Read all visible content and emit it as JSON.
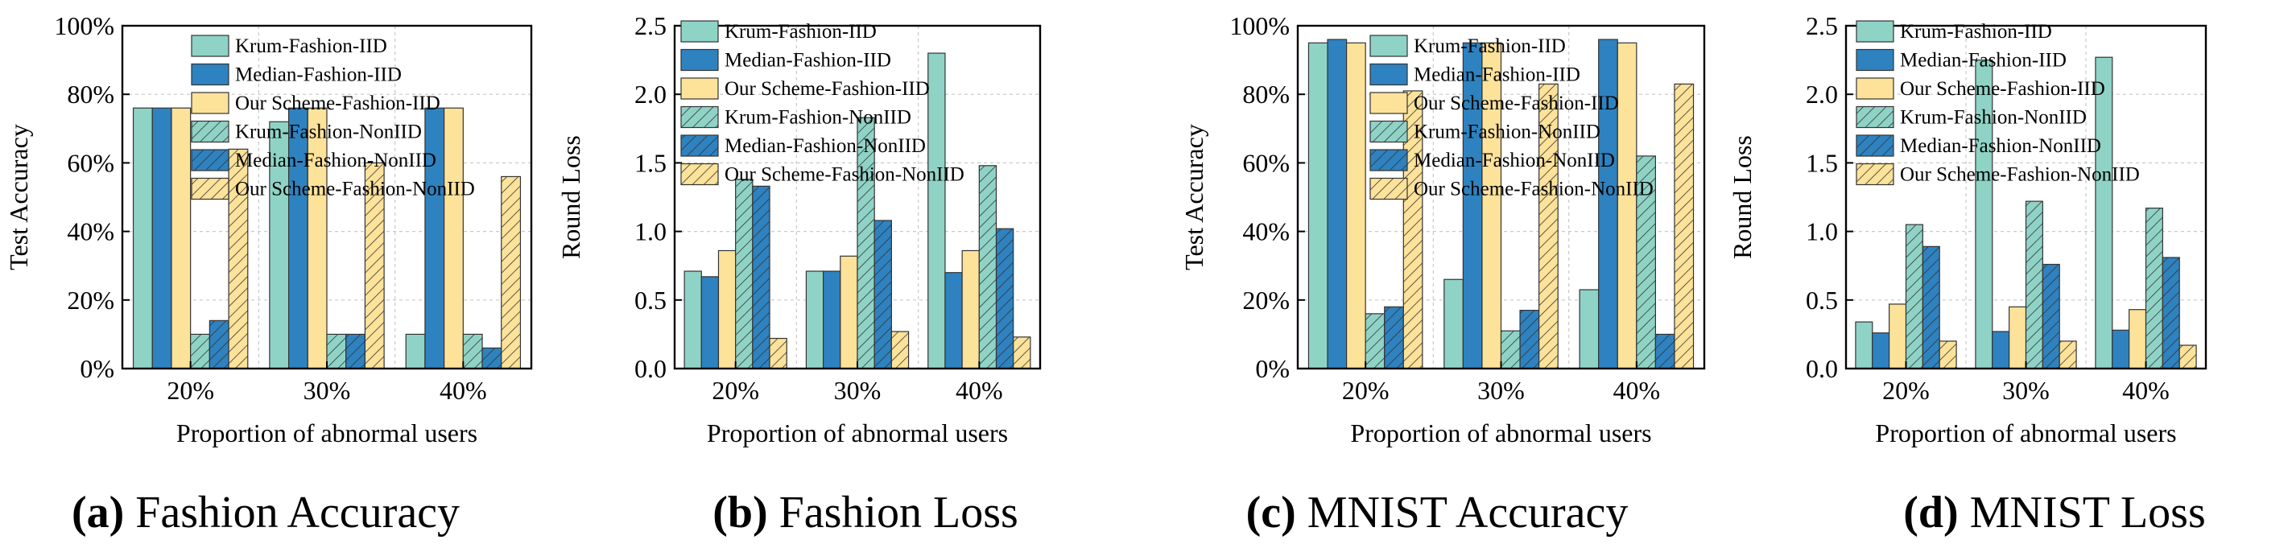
{
  "series_names": [
    "Krum-Fashion-IID",
    "Median-Fashion-IID",
    "Our Scheme-Fashion-IID",
    "Krum-Fashion-NonIID",
    "Median-Fashion-NonIID",
    "Our Scheme-Fashion-NonIID"
  ],
  "series_colors": [
    "#8fd3c6",
    "#2e82c0",
    "#fde29a",
    "#8fd3c6",
    "#2e82c0",
    "#fde29a"
  ],
  "series_hatched": [
    false,
    false,
    false,
    true,
    true,
    true
  ],
  "chart_data": [
    {
      "type": "bar",
      "caption_letter": "(a)",
      "caption_text": "Fashion Accuracy",
      "xlabel": "Proportion of abnormal users",
      "ylabel": "Test Accuracy",
      "categories": [
        "20%",
        "30%",
        "40%"
      ],
      "ylim": [
        0,
        1
      ],
      "yticks": [
        0,
        0.2,
        0.4,
        0.6,
        0.8,
        1.0
      ],
      "ytick_labels": [
        "0%",
        "20%",
        "40%",
        "60%",
        "80%",
        "100%"
      ],
      "grid": true,
      "legend_position": "top-right",
      "series": [
        {
          "name": "Krum-Fashion-IID",
          "values": [
            0.76,
            0.72,
            0.1
          ]
        },
        {
          "name": "Median-Fashion-IID",
          "values": [
            0.76,
            0.76,
            0.76
          ]
        },
        {
          "name": "Our Scheme-Fashion-IID",
          "values": [
            0.76,
            0.76,
            0.76
          ]
        },
        {
          "name": "Krum-Fashion-NonIID",
          "values": [
            0.1,
            0.1,
            0.1
          ]
        },
        {
          "name": "Median-Fashion-NonIID",
          "values": [
            0.14,
            0.1,
            0.06
          ]
        },
        {
          "name": "Our Scheme-Fashion-NonIID",
          "values": [
            0.64,
            0.6,
            0.56
          ]
        }
      ]
    },
    {
      "type": "bar",
      "caption_letter": "(b)",
      "caption_text": "Fashion Loss",
      "xlabel": "Proportion of abnormal users",
      "ylabel": "Round Loss",
      "categories": [
        "20%",
        "30%",
        "40%"
      ],
      "ylim": [
        0,
        2.5
      ],
      "yticks": [
        0,
        0.5,
        1.0,
        1.5,
        2.0,
        2.5
      ],
      "ytick_labels": [
        "0.0",
        "0.5",
        "1.0",
        "1.5",
        "2.0",
        "2.5"
      ],
      "grid": true,
      "legend_position": "top-right",
      "series": [
        {
          "name": "Krum-Fashion-IID",
          "values": [
            0.71,
            0.71,
            2.3
          ]
        },
        {
          "name": "Median-Fashion-IID",
          "values": [
            0.67,
            0.71,
            0.7
          ]
        },
        {
          "name": "Our Scheme-Fashion-IID",
          "values": [
            0.86,
            0.82,
            0.86
          ]
        },
        {
          "name": "Krum-Fashion-NonIID",
          "values": [
            1.38,
            1.83,
            1.48
          ]
        },
        {
          "name": "Median-Fashion-NonIID",
          "values": [
            1.33,
            1.08,
            1.02
          ]
        },
        {
          "name": "Our Scheme-Fashion-NonIID",
          "values": [
            0.22,
            0.27,
            0.23
          ]
        }
      ]
    },
    {
      "type": "bar",
      "caption_letter": "(c)",
      "caption_text": "MNIST Accuracy",
      "xlabel": "Proportion of abnormal users",
      "ylabel": "Test Accuracy",
      "categories": [
        "20%",
        "30%",
        "40%"
      ],
      "ylim": [
        0,
        1
      ],
      "yticks": [
        0,
        0.2,
        0.4,
        0.6,
        0.8,
        1.0
      ],
      "ytick_labels": [
        "0%",
        "20%",
        "40%",
        "60%",
        "80%",
        "100%"
      ],
      "grid": true,
      "legend_position": "top-right",
      "series": [
        {
          "name": "Krum-Fashion-IID",
          "values": [
            0.95,
            0.26,
            0.23
          ]
        },
        {
          "name": "Median-Fashion-IID",
          "values": [
            0.96,
            0.95,
            0.96
          ]
        },
        {
          "name": "Our Scheme-Fashion-IID",
          "values": [
            0.95,
            0.95,
            0.95
          ]
        },
        {
          "name": "Krum-Fashion-NonIID",
          "values": [
            0.16,
            0.11,
            0.62
          ]
        },
        {
          "name": "Median-Fashion-NonIID",
          "values": [
            0.18,
            0.17,
            0.1
          ]
        },
        {
          "name": "Our Scheme-Fashion-NonIID",
          "values": [
            0.81,
            0.83,
            0.83
          ]
        }
      ]
    },
    {
      "type": "bar",
      "caption_letter": "(d)",
      "caption_text": "MNIST Loss",
      "xlabel": "Proportion of abnormal users",
      "ylabel": "Round Loss",
      "categories": [
        "20%",
        "30%",
        "40%"
      ],
      "ylim": [
        0,
        2.5
      ],
      "yticks": [
        0,
        0.5,
        1.0,
        1.5,
        2.0,
        2.5
      ],
      "ytick_labels": [
        "0.0",
        "0.5",
        "1.0",
        "1.5",
        "2.0",
        "2.5"
      ],
      "grid": true,
      "legend_position": "top-right",
      "series": [
        {
          "name": "Krum-Fashion-IID",
          "values": [
            0.34,
            2.25,
            2.27
          ]
        },
        {
          "name": "Median-Fashion-IID",
          "values": [
            0.26,
            0.27,
            0.28
          ]
        },
        {
          "name": "Our Scheme-Fashion-IID",
          "values": [
            0.47,
            0.45,
            0.43
          ]
        },
        {
          "name": "Krum-Fashion-NonIID",
          "values": [
            1.05,
            1.22,
            1.17
          ]
        },
        {
          "name": "Median-Fashion-NonIID",
          "values": [
            0.89,
            0.76,
            0.81
          ]
        },
        {
          "name": "Our Scheme-Fashion-NonIID",
          "values": [
            0.2,
            0.2,
            0.17
          ]
        }
      ]
    }
  ]
}
